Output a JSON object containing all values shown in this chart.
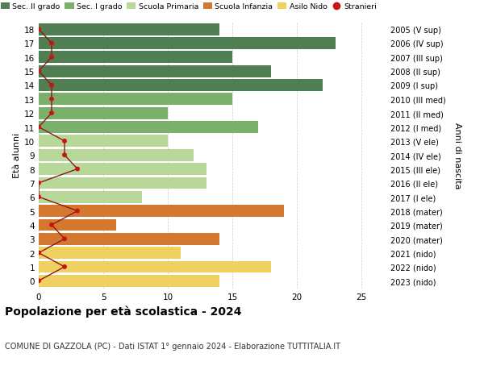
{
  "ages": [
    18,
    17,
    16,
    15,
    14,
    13,
    12,
    11,
    10,
    9,
    8,
    7,
    6,
    5,
    4,
    3,
    2,
    1,
    0
  ],
  "years_labels": [
    "2005 (V sup)",
    "2006 (IV sup)",
    "2007 (III sup)",
    "2008 (II sup)",
    "2009 (I sup)",
    "2010 (III med)",
    "2011 (II med)",
    "2012 (I med)",
    "2013 (V ele)",
    "2014 (IV ele)",
    "2015 (III ele)",
    "2016 (II ele)",
    "2017 (I ele)",
    "2018 (mater)",
    "2019 (mater)",
    "2020 (mater)",
    "2021 (nido)",
    "2022 (nido)",
    "2023 (nido)"
  ],
  "bar_values": [
    14,
    23,
    15,
    18,
    22,
    15,
    10,
    17,
    10,
    12,
    13,
    13,
    8,
    19,
    6,
    14,
    11,
    18,
    14
  ],
  "bar_colors": [
    "#4e7e52",
    "#4e7e52",
    "#4e7e52",
    "#4e7e52",
    "#4e7e52",
    "#7ab06a",
    "#7ab06a",
    "#7ab06a",
    "#b8d89a",
    "#b8d89a",
    "#b8d89a",
    "#b8d89a",
    "#b8d89a",
    "#d47830",
    "#d47830",
    "#d47830",
    "#f0d060",
    "#f0d060",
    "#f0d060"
  ],
  "stranieri_values": [
    0,
    1,
    1,
    0,
    1,
    1,
    1,
    0,
    2,
    2,
    3,
    0,
    0,
    3,
    1,
    2,
    0,
    2,
    0
  ],
  "legend_labels": [
    "Sec. II grado",
    "Sec. I grado",
    "Scuola Primaria",
    "Scuola Infanzia",
    "Asilo Nido",
    "Stranieri"
  ],
  "legend_colors": [
    "#4e7e52",
    "#7ab06a",
    "#b8d89a",
    "#d47830",
    "#f0d060",
    "#cc1111"
  ],
  "title": "Popolazione per età scolastica - 2024",
  "subtitle": "COMUNE DI GAZZOLA (PC) - Dati ISTAT 1° gennaio 2024 - Elaborazione TUTTITALIA.IT",
  "ylabel_left": "Età alunni",
  "ylabel_right": "Anni di nascita",
  "xlim": [
    0,
    27
  ],
  "xticks": [
    0,
    5,
    10,
    15,
    20,
    25
  ],
  "ylim_min": -0.55,
  "ylim_max": 18.55,
  "background_color": "#ffffff",
  "grid_color": "#cccccc",
  "stranieri_line_color": "#8b1a1a",
  "stranieri_dot_color": "#cc1111"
}
